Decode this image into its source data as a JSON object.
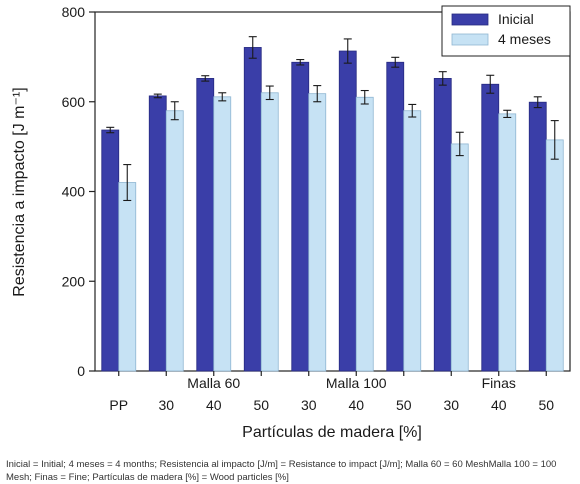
{
  "chart_data": {
    "type": "bar",
    "ylabel": "Resistencia a impacto [J m⁻¹]",
    "xlabel": "Partículas de madera [%]",
    "ylim": [
      0,
      800
    ],
    "yticks": [
      0,
      200,
      400,
      600,
      800
    ],
    "categories": [
      "PP",
      "30",
      "40",
      "50",
      "30",
      "40",
      "50",
      "30",
      "40",
      "50"
    ],
    "groups": [
      {
        "label": "Malla 60",
        "categories": [
          1,
          2,
          3
        ]
      },
      {
        "label": "Malla 100",
        "categories": [
          4,
          5,
          6
        ]
      },
      {
        "label": "Finas",
        "categories": [
          7,
          8,
          9
        ]
      }
    ],
    "series": [
      {
        "name": "Inicial",
        "color": "#3a3ea8",
        "values": [
          537,
          613,
          652,
          721,
          688,
          713,
          688,
          652,
          639,
          599
        ],
        "errors": [
          6,
          4,
          6,
          24,
          6,
          27,
          11,
          15,
          20,
          12
        ]
      },
      {
        "name": "4 meses",
        "color": "#c6e2f4",
        "values": [
          420,
          580,
          611,
          620,
          618,
          610,
          580,
          506,
          573,
          515
        ],
        "errors": [
          40,
          20,
          9,
          15,
          18,
          15,
          14,
          26,
          8,
          43
        ]
      }
    ],
    "legend_position": "top-right",
    "grid": false
  },
  "caption": "Inicial = Initial; 4 meses = 4 months; Resistencia al impacto [J/m] = Resistance to impact [J/m]; Malla 60 = 60 MeshMalla 100 = 100 Mesh; Finas = Fine; Partículas de madera [%] = Wood particles [%]"
}
